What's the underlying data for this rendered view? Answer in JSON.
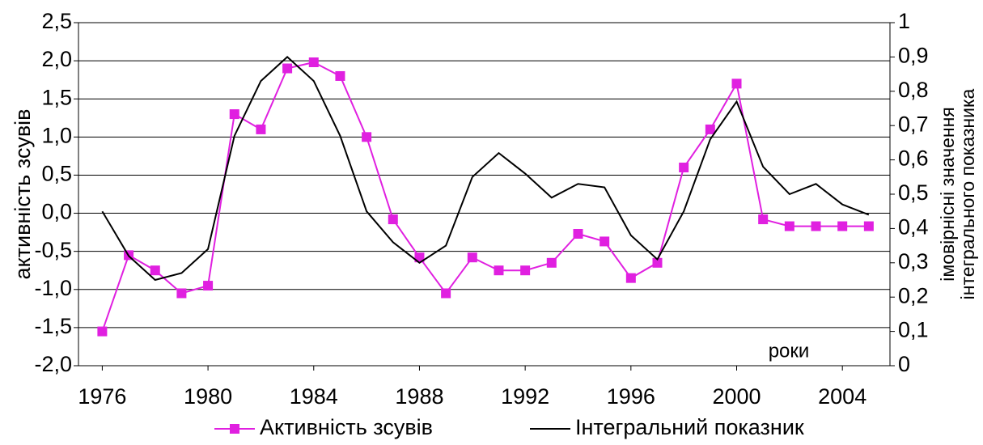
{
  "chart_data": {
    "type": "line",
    "ylabel": "активність зсувів",
    "y2label": [
      "імовірнісні значення",
      "інтегрального показника"
    ],
    "annotation": "роки",
    "x": [
      1976,
      1977,
      1978,
      1979,
      1980,
      1981,
      1982,
      1983,
      1984,
      1985,
      1986,
      1987,
      1988,
      1989,
      1990,
      1991,
      1992,
      1993,
      1994,
      1995,
      1996,
      1997,
      1998,
      1999,
      2000,
      2001,
      2002,
      2003,
      2004,
      2005
    ],
    "xlim": [
      1975.1,
      2005.8
    ],
    "xticks": [
      1976,
      1980,
      1984,
      1988,
      1992,
      1996,
      2000,
      2004
    ],
    "ylim": [
      -2,
      2.5
    ],
    "yticks": [
      {
        "value": -2,
        "label": "-2,0"
      },
      {
        "value": -1.5,
        "label": "-1,5"
      },
      {
        "value": -1,
        "label": "-1,0"
      },
      {
        "value": -0.5,
        "label": "-0,5"
      },
      {
        "value": 0,
        "label": "0,0"
      },
      {
        "value": 0.5,
        "label": "0,5"
      },
      {
        "value": 1,
        "label": "1,0"
      },
      {
        "value": 1.5,
        "label": "1,5"
      },
      {
        "value": 2,
        "label": "2,0"
      },
      {
        "value": 2.5,
        "label": "2,5"
      }
    ],
    "y2lim": [
      0,
      1
    ],
    "y2ticks": [
      0,
      {
        "value": 0.1,
        "label": "0,1"
      },
      {
        "value": 0.2,
        "label": "0,2"
      },
      {
        "value": 0.3,
        "label": "0,3"
      },
      {
        "value": 0.4,
        "label": "0,4"
      },
      {
        "value": 0.5,
        "label": "0,5"
      },
      {
        "value": 0.6,
        "label": "0,6"
      },
      {
        "value": 0.7,
        "label": "0,7"
      },
      {
        "value": 0.8,
        "label": "0,8"
      },
      {
        "value": 0.9,
        "label": "0,9"
      },
      1
    ],
    "grid": true,
    "series": [
      {
        "name": "Активність зсувів",
        "color": "#e020e0",
        "marker": true,
        "values": [
          -1.55,
          -0.55,
          -0.75,
          -1.05,
          -0.95,
          1.3,
          1.1,
          1.9,
          1.98,
          1.8,
          1.0,
          -0.08,
          -0.58,
          -1.05,
          -0.58,
          -0.75,
          -0.75,
          -0.65,
          -0.27,
          -0.37,
          -0.85,
          -0.65,
          0.6,
          1.1,
          1.7,
          -0.08,
          -0.17,
          -0.17,
          -0.17,
          -0.17
        ]
      },
      {
        "name": "Інтегральний показник",
        "color": "#000000",
        "marker": false,
        "axis": "y2",
        "values": [
          0.45,
          0.32,
          0.25,
          0.27,
          0.34,
          0.67,
          0.83,
          0.9,
          0.83,
          0.67,
          0.45,
          0.36,
          0.3,
          0.35,
          0.55,
          0.62,
          0.56,
          0.49,
          0.53,
          0.52,
          0.38,
          0.31,
          0.45,
          0.66,
          0.77,
          0.58,
          0.5,
          0.53,
          0.47,
          0.44
        ]
      }
    ]
  }
}
